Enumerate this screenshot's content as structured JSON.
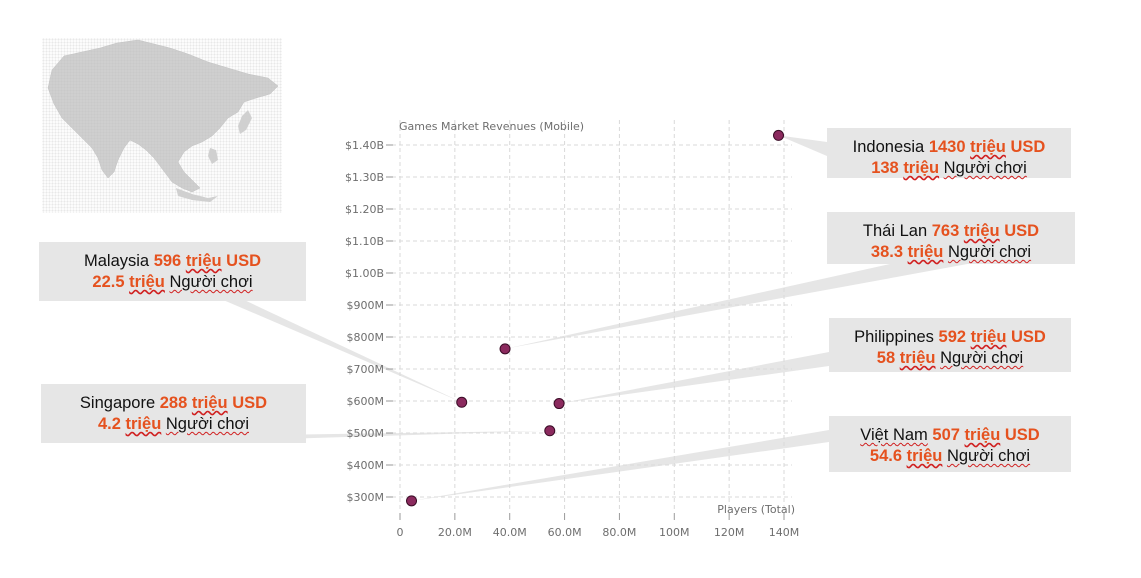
{
  "colors": {
    "point_fill": "#8b2a5e",
    "point_stroke": "#3a0c26",
    "highlight": "#e5521f",
    "callout_bg": "#e6e6e6",
    "grid": "#d9d9d9",
    "map": "#c9c9c9"
  },
  "map_icon": "asia-map-icon",
  "chart_data": {
    "type": "scatter",
    "xlabel": "Players (Total)",
    "ylabel": "Games Market Revenues (Mobile)",
    "xlim": [
      0,
      140
    ],
    "ylim": [
      300,
      1400
    ],
    "x_ticks": [
      {
        "value": 0,
        "label": "0"
      },
      {
        "value": 20,
        "label": "20.0M"
      },
      {
        "value": 40,
        "label": "40.0M"
      },
      {
        "value": 60,
        "label": "60.0M"
      },
      {
        "value": 80,
        "label": "80.0M"
      },
      {
        "value": 100,
        "label": "100M"
      },
      {
        "value": 120,
        "label": "120M"
      },
      {
        "value": 140,
        "label": "140M"
      }
    ],
    "y_ticks": [
      {
        "value": 300,
        "label": "$300M"
      },
      {
        "value": 400,
        "label": "$400M"
      },
      {
        "value": 500,
        "label": "$500M"
      },
      {
        "value": 600,
        "label": "$600M"
      },
      {
        "value": 700,
        "label": "$700M"
      },
      {
        "value": 800,
        "label": "$800M"
      },
      {
        "value": 900,
        "label": "$900M"
      },
      {
        "value": 1000,
        "label": "$1.00B"
      },
      {
        "value": 1100,
        "label": "$1.10B"
      },
      {
        "value": 1200,
        "label": "$1.20B"
      },
      {
        "value": 1300,
        "label": "$1.30B"
      },
      {
        "value": 1400,
        "label": "$1.40B"
      }
    ],
    "grid": true,
    "points": [
      {
        "x": 138,
        "y": 1430
      },
      {
        "x": 38.3,
        "y": 763
      },
      {
        "x": 22.5,
        "y": 596
      },
      {
        "x": 58,
        "y": 592
      },
      {
        "x": 54.6,
        "y": 507
      },
      {
        "x": 4.2,
        "y": 288
      }
    ]
  },
  "callouts": [
    {
      "country": "Indonesia",
      "revenue_value": "1430",
      "players_value": "138"
    },
    {
      "country": "Thái Lan",
      "revenue_value": "763",
      "players_value": "38.3"
    },
    {
      "country": "Malaysia",
      "revenue_value": "596",
      "players_value": "22.5"
    },
    {
      "country": "Philippines",
      "revenue_value": "592",
      "players_value": "58"
    },
    {
      "country": "Singapore",
      "revenue_value": "288",
      "players_value": "4.2"
    },
    {
      "country": "Việt Nam",
      "revenue_value": "507",
      "players_value": "54.6"
    }
  ],
  "labels": {
    "million": "triệu",
    "usd": "USD",
    "players": "Người chơi"
  }
}
